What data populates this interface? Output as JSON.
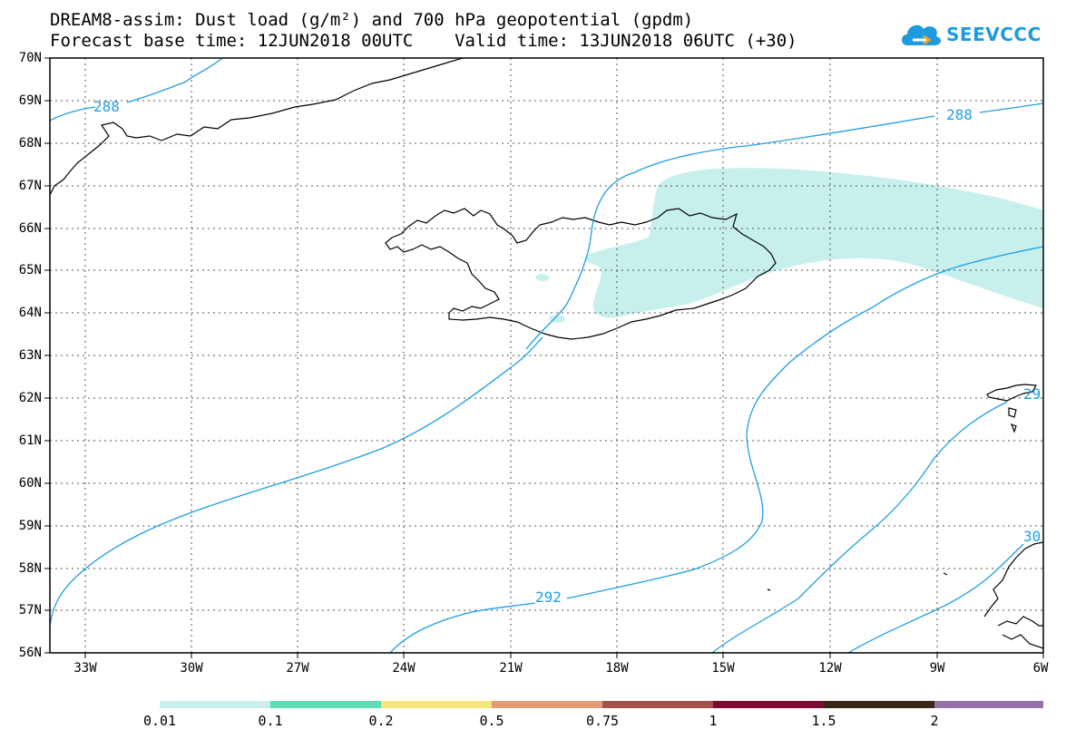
{
  "title": {
    "line1": "DREAM8-assim: Dust load (g/m²) and 700 hPa geopotential (gpdm)",
    "line2": "Forecast base time: 12JUN2018 00UTC    Valid time: 13JUN2018 06UTC (+30)"
  },
  "logo": {
    "text": "SEEVCCC",
    "icon": "cloud-icon",
    "color": "#1e9ae0"
  },
  "map": {
    "lat_labels": [
      "70N",
      "69N",
      "68N",
      "67N",
      "66N",
      "65N",
      "64N",
      "63N",
      "62N",
      "61N",
      "60N",
      "59N",
      "58N",
      "57N",
      "56N"
    ],
    "lon_labels": [
      "33W",
      "30W",
      "27W",
      "24W",
      "21W",
      "18W",
      "15W",
      "12W",
      "9W",
      "6W"
    ],
    "contour_labels": [
      "288",
      "288",
      "292",
      "29",
      "30"
    ],
    "contour_color": "#1f9fe0",
    "dust_color": "#c7f0ec",
    "coast_color": "#000000"
  },
  "colorbar": {
    "labels": [
      "0.01",
      "0.1",
      "0.2",
      "0.5",
      "0.75",
      "1",
      "1.5",
      "2"
    ],
    "colors": [
      "#c7f0ec",
      "#5fdcb3",
      "#f4e57c",
      "#e49a72",
      "#a5524c",
      "#7d0a33",
      "#3a2816",
      "#9571a8"
    ]
  }
}
